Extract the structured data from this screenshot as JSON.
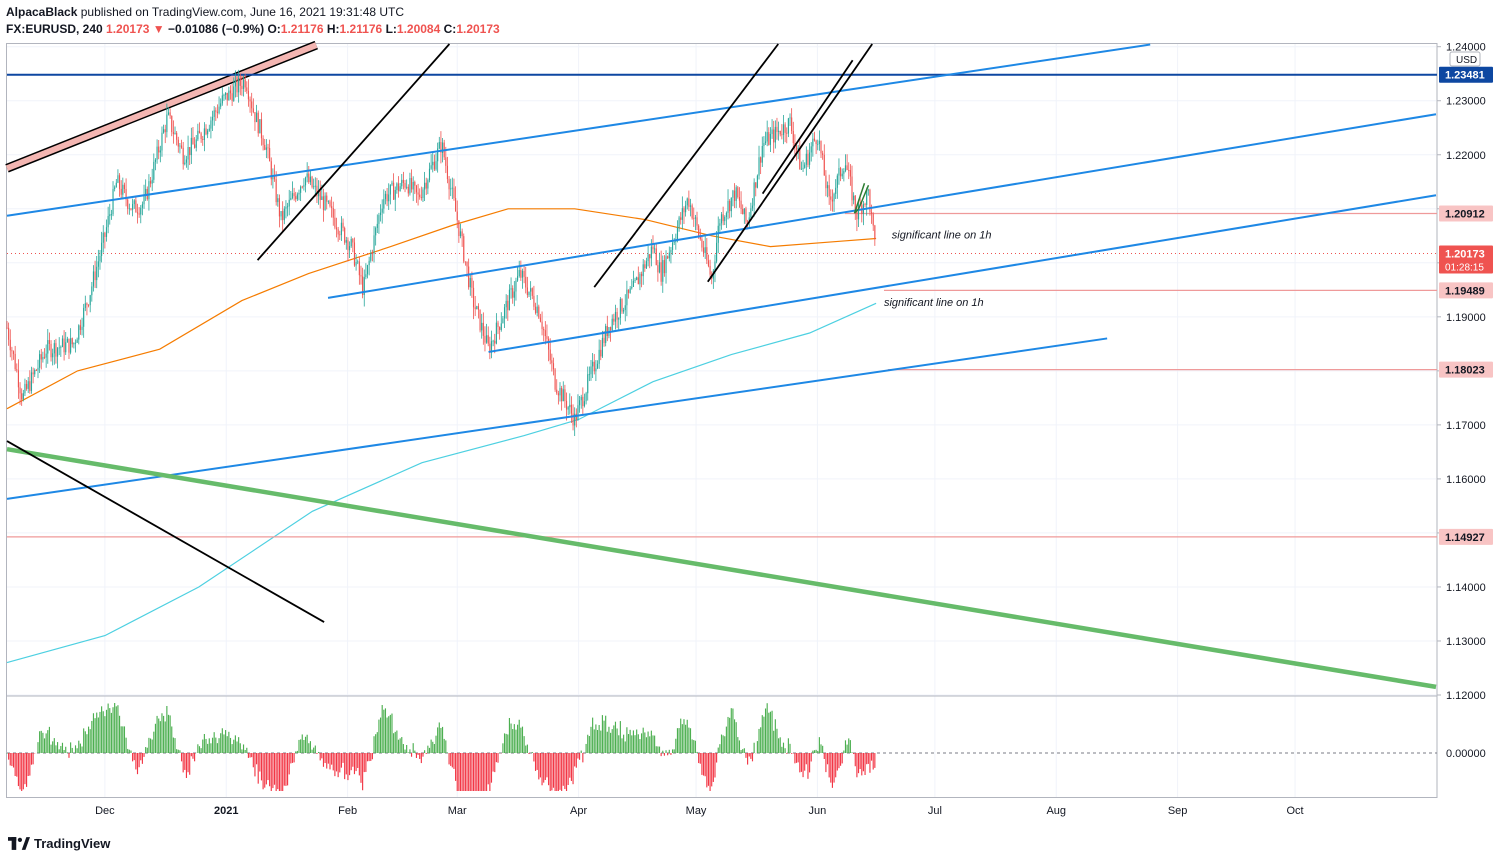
{
  "header": {
    "author": "AlpacaBlack",
    "published_text": "published on TradingView.com, June 16, 2021 19:31:48 UTC",
    "symbol": "FX:EURUSD, 240",
    "last": "1.20173",
    "change_arrow": "▼",
    "change": "−0.01086 (−0.9%)",
    "o_label": "O:",
    "o": "1.21176",
    "h_label": "H:",
    "h": "1.21176",
    "l_label": "L:",
    "l": "1.20084",
    "c_label": "C:",
    "c": "1.20173"
  },
  "footer": {
    "brand": "TradingView"
  },
  "colors": {
    "up": "#26a69a",
    "down": "#ef5350",
    "blue_line": "#1e88e5",
    "dark_blue": "#0d47a1",
    "green_line": "#66bb6a",
    "orange_ma": "#f57c00",
    "cyan_ma": "#4dd0e1",
    "black_line": "#000000",
    "osc_up": "#4caf50",
    "osc_down": "#f23645",
    "grid": "#f0f3fa"
  },
  "chart_data": {
    "type": "candlestick",
    "symbol": "EURUSD",
    "timeframe": "240",
    "currency": "USD",
    "y_range": [
      1.12,
      1.2405
    ],
    "x_range": [
      "2020-11-06",
      "2021-11-06"
    ],
    "y_ticks": [
      "1.24000",
      "1.23000",
      "1.22000",
      "1.21000",
      "1.20000",
      "1.19000",
      "1.18000",
      "1.17000",
      "1.16000",
      "1.15000",
      "1.14000",
      "1.13000",
      "1.12000"
    ],
    "x_ticks": [
      {
        "label": "Dec",
        "date": "2020-12-01"
      },
      {
        "label": "2021",
        "date": "2021-01-01"
      },
      {
        "label": "Feb",
        "date": "2021-02-01"
      },
      {
        "label": "Mar",
        "date": "2021-03-01"
      },
      {
        "label": "Apr",
        "date": "2021-04-01"
      },
      {
        "label": "May",
        "date": "2021-05-01"
      },
      {
        "label": "Jun",
        "date": "2021-06-01"
      },
      {
        "label": "Jul",
        "date": "2021-07-01"
      },
      {
        "label": "Aug",
        "date": "2021-08-01"
      },
      {
        "label": "Sep",
        "date": "2021-09-01"
      },
      {
        "label": "Oct",
        "date": "2021-10-01"
      }
    ],
    "price_path": [
      [
        "2020-11-06",
        1.188
      ],
      [
        "2020-11-10",
        1.175
      ],
      [
        "2020-11-16",
        1.184
      ],
      [
        "2020-11-23",
        1.185
      ],
      [
        "2020-11-27",
        1.194
      ],
      [
        "2020-12-01",
        1.205
      ],
      [
        "2020-12-04",
        1.215
      ],
      [
        "2020-12-08",
        1.21
      ],
      [
        "2020-12-11",
        1.211
      ],
      [
        "2020-12-17",
        1.227
      ],
      [
        "2020-12-21",
        1.22
      ],
      [
        "2020-12-24",
        1.222
      ],
      [
        "2020-12-31",
        1.23
      ],
      [
        "2021-01-06",
        1.234
      ],
      [
        "2021-01-08",
        1.228
      ],
      [
        "2021-01-11",
        1.222
      ],
      [
        "2021-01-15",
        1.208
      ],
      [
        "2021-01-21",
        1.216
      ],
      [
        "2021-01-27",
        1.21
      ],
      [
        "2021-02-02",
        1.203
      ],
      [
        "2021-02-05",
        1.195
      ],
      [
        "2021-02-10",
        1.212
      ],
      [
        "2021-02-16",
        1.215
      ],
      [
        "2021-02-19",
        1.212
      ],
      [
        "2021-02-25",
        1.222
      ],
      [
        "2021-03-01",
        1.208
      ],
      [
        "2021-03-05",
        1.193
      ],
      [
        "2021-03-09",
        1.184
      ],
      [
        "2021-03-17",
        1.198
      ],
      [
        "2021-03-22",
        1.191
      ],
      [
        "2021-03-26",
        1.178
      ],
      [
        "2021-03-31",
        1.171
      ],
      [
        "2021-04-05",
        1.181
      ],
      [
        "2021-04-09",
        1.189
      ],
      [
        "2021-04-15",
        1.195
      ],
      [
        "2021-04-20",
        1.203
      ],
      [
        "2021-04-22",
        1.198
      ],
      [
        "2021-04-29",
        1.212
      ],
      [
        "2021-05-05",
        1.197
      ],
      [
        "2021-05-07",
        1.208
      ],
      [
        "2021-05-11",
        1.213
      ],
      [
        "2021-05-14",
        1.207
      ],
      [
        "2021-05-18",
        1.222
      ],
      [
        "2021-05-25",
        1.226
      ],
      [
        "2021-05-28",
        1.217
      ],
      [
        "2021-06-01",
        1.224
      ],
      [
        "2021-06-04",
        1.211
      ],
      [
        "2021-06-08",
        1.219
      ],
      [
        "2021-06-11",
        1.209
      ],
      [
        "2021-06-14",
        1.213
      ],
      [
        "2021-06-16",
        1.201
      ]
    ],
    "moving_averages": [
      {
        "name": "MA (orange)",
        "color": "orange",
        "points": [
          [
            "2020-11-06",
            1.173
          ],
          [
            "2020-11-24",
            1.18
          ],
          [
            "2020-12-15",
            1.184
          ],
          [
            "2021-01-05",
            1.193
          ],
          [
            "2021-01-22",
            1.198
          ],
          [
            "2021-02-12",
            1.203
          ],
          [
            "2021-02-28",
            1.207
          ],
          [
            "2021-03-14",
            1.21
          ],
          [
            "2021-03-31",
            1.21
          ],
          [
            "2021-04-18",
            1.208
          ],
          [
            "2021-05-05",
            1.205
          ],
          [
            "2021-05-20",
            1.203
          ],
          [
            "2021-06-07",
            1.204
          ],
          [
            "2021-06-16",
            1.2045
          ]
        ]
      },
      {
        "name": "MA (cyan)",
        "color": "cyan",
        "points": [
          [
            "2020-11-06",
            1.126
          ],
          [
            "2020-12-01",
            1.131
          ],
          [
            "2020-12-25",
            1.14
          ],
          [
            "2021-01-23",
            1.154
          ],
          [
            "2021-02-20",
            1.163
          ],
          [
            "2021-03-18",
            1.168
          ],
          [
            "2021-04-01",
            1.171
          ],
          [
            "2021-04-20",
            1.178
          ],
          [
            "2021-05-10",
            1.183
          ],
          [
            "2021-05-30",
            1.187
          ],
          [
            "2021-06-16",
            1.1925
          ]
        ]
      }
    ],
    "horizontal_levels": [
      {
        "value": 1.23481,
        "label": "1.23481",
        "color": "dark_blue",
        "from": "start"
      },
      {
        "value": 1.20912,
        "label": "1.20912",
        "color": "red",
        "from": "2021-06-08"
      },
      {
        "value": 1.19489,
        "label": "1.19489",
        "color": "red",
        "from": "2021-06-18"
      },
      {
        "value": 1.18023,
        "label": "1.18023",
        "color": "red",
        "from": "2021-06-19"
      },
      {
        "value": 1.14927,
        "label": "1.14927",
        "color": "red",
        "from": "start"
      }
    ],
    "current_price": {
      "value": 1.20173,
      "label": "1.20173",
      "countdown": "01:28:15"
    },
    "trendlines": [
      {
        "color": "blue",
        "from": [
          "2020-11-06",
          1.2087
        ],
        "to": [
          "2021-08-25",
          1.2404
        ]
      },
      {
        "color": "blue",
        "from": [
          "2021-01-27",
          1.1935
        ],
        "to": [
          "2021-11-06",
          1.2275
        ]
      },
      {
        "color": "blue",
        "from": [
          "2021-03-09",
          1.1835
        ],
        "to": [
          "2021-11-06",
          1.2125
        ]
      },
      {
        "color": "blue",
        "from": [
          "2020-11-06",
          1.1563
        ],
        "to": [
          "2021-08-14",
          1.186
        ]
      },
      {
        "color": "green",
        "from": [
          "2020-11-06",
          1.1655
        ],
        "to": [
          "2021-11-06",
          1.1215
        ]
      },
      {
        "color": "black",
        "from": [
          "2020-11-06",
          1.167
        ],
        "to": [
          "2021-01-26",
          1.1335
        ]
      },
      {
        "color": "black",
        "from": [
          "2021-01-09",
          1.2005
        ],
        "to": [
          "2021-02-27",
          1.2405
        ]
      },
      {
        "color": "black",
        "from": [
          "2021-04-05",
          1.1955
        ],
        "to": [
          "2021-05-22",
          1.2405
        ]
      },
      {
        "color": "black",
        "from": [
          "2021-05-04",
          1.1965
        ],
        "to": [
          "2021-06-15",
          1.2405
        ]
      },
      {
        "color": "black",
        "from": [
          "2021-05-18",
          1.2128
        ],
        "to": [
          "2021-06-10",
          1.2375
        ]
      }
    ],
    "channel_band": {
      "color": "pink",
      "from": [
        "2020-11-06",
        1.2175
      ],
      "to": [
        "2021-01-24",
        1.2403
      ]
    },
    "annotations": [
      {
        "text": "significant line on 1h",
        "date": "2021-06-20",
        "price": 1.2045
      },
      {
        "text": "significant line on 1h",
        "date": "2021-06-18",
        "price": 1.192
      }
    ],
    "oscillator": {
      "baseline_label": "0.00000"
    }
  }
}
